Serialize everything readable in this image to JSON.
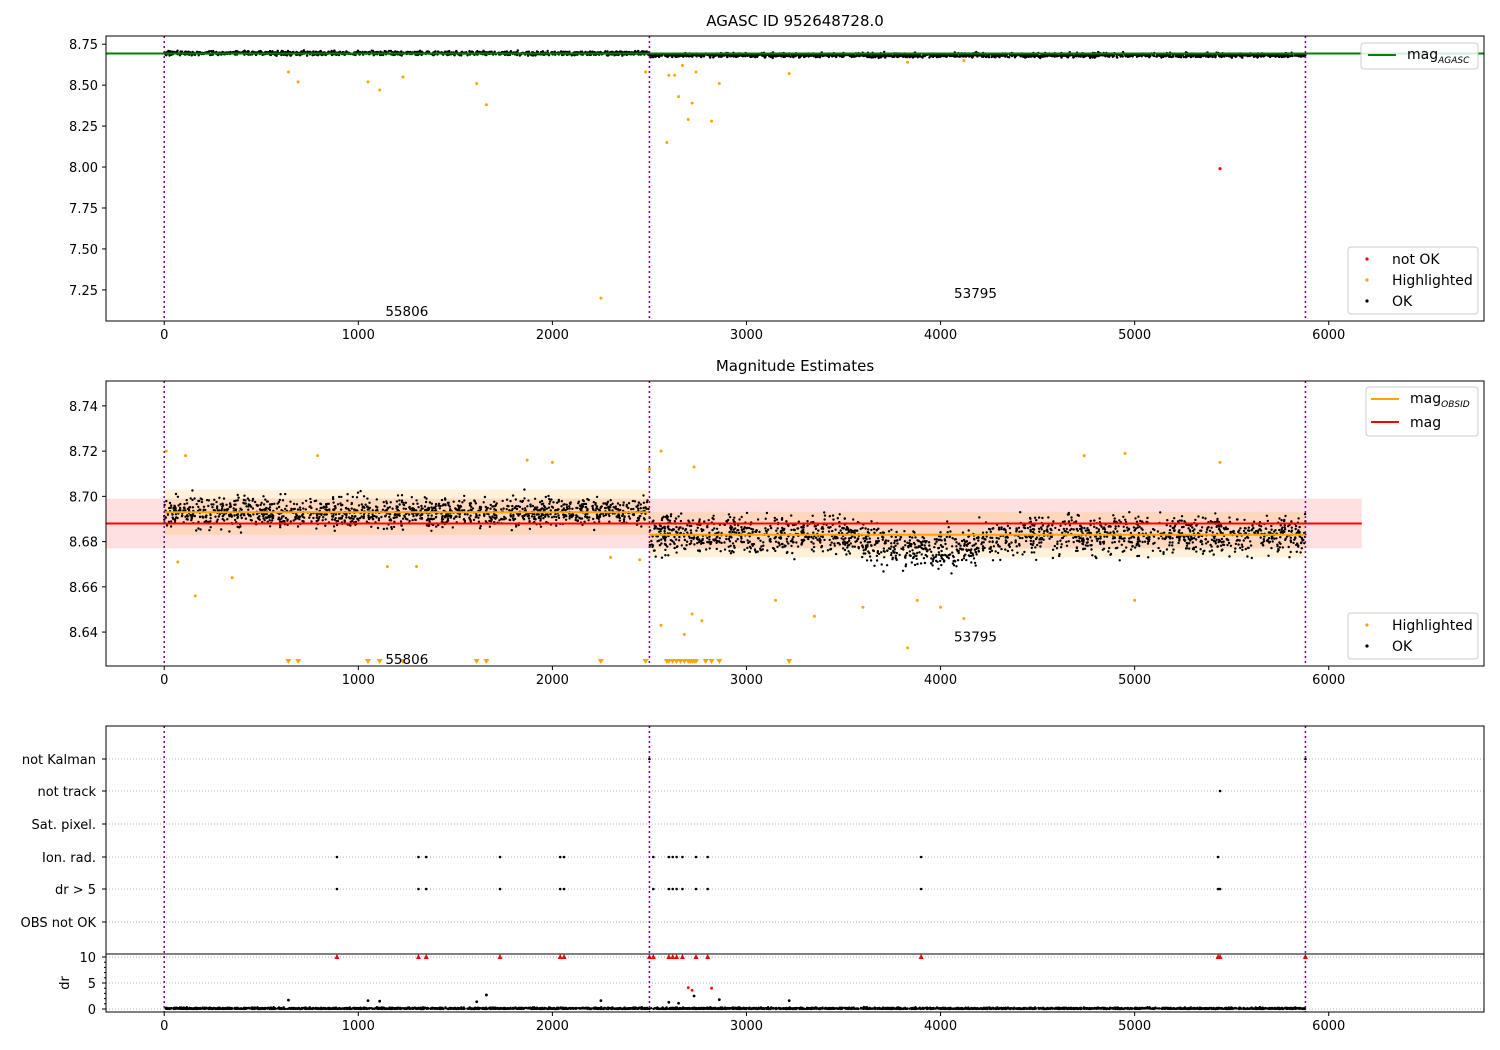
{
  "chart_data": [
    {
      "type": "scatter",
      "title": "AGASC ID 952648728.0",
      "xlim": [
        -300,
        6800
      ],
      "ylim": [
        7.06,
        8.8
      ],
      "xticks": [
        0,
        1000,
        2000,
        3000,
        4000,
        5000,
        6000
      ],
      "yticks": [
        7.25,
        7.5,
        7.75,
        8.0,
        8.25,
        8.5,
        8.75
      ],
      "ytick_labels": [
        "7.25",
        "7.50",
        "7.75",
        "8.00",
        "8.25",
        "8.50",
        "8.75"
      ],
      "grid": false,
      "mag_agasc": 8.693,
      "obsid_boundaries": [
        0,
        2500,
        5880
      ],
      "obsid_labels": [
        {
          "text": "55806",
          "x": 1250,
          "y": 7.12
        },
        {
          "text": "53795",
          "x": 4180,
          "y": 7.23
        }
      ],
      "lines_legend": {
        "position": "upper-right",
        "entries": [
          {
            "label": "mag",
            "sub": "AGASC",
            "color": "#008000"
          }
        ]
      },
      "points_legend": {
        "position": "lower-right",
        "entries": [
          {
            "label": "not OK",
            "color": "#ff0000"
          },
          {
            "label": "Highlighted",
            "color": "#ffa500"
          },
          {
            "label": "OK",
            "color": "#000000"
          }
        ]
      },
      "band_segments": [
        {
          "x0": 0,
          "x1": 2500,
          "center": 8.695,
          "spread": 0.012
        },
        {
          "x0": 2500,
          "x1": 5880,
          "center": 8.683,
          "spread": 0.013
        }
      ],
      "not_ok_points": [
        {
          "x": 5440,
          "y": 7.99
        }
      ],
      "highlighted_points": [
        {
          "x": 640,
          "y": 8.58
        },
        {
          "x": 690,
          "y": 8.52
        },
        {
          "x": 1050,
          "y": 8.52
        },
        {
          "x": 1110,
          "y": 8.47
        },
        {
          "x": 1230,
          "y": 8.55
        },
        {
          "x": 1610,
          "y": 8.51
        },
        {
          "x": 1660,
          "y": 8.38
        },
        {
          "x": 2250,
          "y": 7.2
        },
        {
          "x": 2480,
          "y": 8.58
        },
        {
          "x": 2590,
          "y": 8.15
        },
        {
          "x": 2600,
          "y": 8.56
        },
        {
          "x": 2630,
          "y": 8.56
        },
        {
          "x": 2650,
          "y": 8.43
        },
        {
          "x": 2670,
          "y": 8.62
        },
        {
          "x": 2700,
          "y": 8.29
        },
        {
          "x": 2720,
          "y": 8.39
        },
        {
          "x": 2740,
          "y": 8.58
        },
        {
          "x": 2820,
          "y": 8.28
        },
        {
          "x": 2860,
          "y": 8.51
        },
        {
          "x": 3220,
          "y": 8.57
        },
        {
          "x": 3830,
          "y": 8.64
        },
        {
          "x": 4120,
          "y": 8.65
        }
      ]
    },
    {
      "type": "scatter",
      "title": "Magnitude Estimates",
      "xlim": [
        -300,
        6800
      ],
      "ylim": [
        8.625,
        8.751
      ],
      "xticks": [
        0,
        1000,
        2000,
        3000,
        4000,
        5000,
        6000
      ],
      "yticks": [
        8.64,
        8.66,
        8.68,
        8.7,
        8.72,
        8.74
      ],
      "ytick_labels": [
        "8.64",
        "8.66",
        "8.68",
        "8.70",
        "8.72",
        "8.74"
      ],
      "grid": false,
      "mag": 8.688,
      "mag_band": [
        8.677,
        8.699
      ],
      "mag_band_xrange": [
        -300,
        6170
      ],
      "mag_obsid": [
        {
          "x0": 0,
          "x1": 2500,
          "value": 8.693,
          "band": [
            8.683,
            8.703
          ]
        },
        {
          "x0": 2500,
          "x1": 5880,
          "value": 8.683,
          "band": [
            8.673,
            8.693
          ]
        }
      ],
      "obsid_boundaries": [
        0,
        2500,
        5880
      ],
      "obsid_labels": [
        {
          "text": "55806",
          "x": 1250,
          "y": 8.628
        },
        {
          "text": "53795",
          "x": 4180,
          "y": 8.638
        }
      ],
      "lines_legend": {
        "position": "upper-right",
        "entries": [
          {
            "label": "mag",
            "sub": "OBSID",
            "color": "#ffa500"
          },
          {
            "label": "mag",
            "sub": "",
            "color": "#ff0000"
          }
        ]
      },
      "points_legend": {
        "position": "lower-right",
        "entries": [
          {
            "label": "Highlighted",
            "color": "#ffa500"
          },
          {
            "label": "OK",
            "color": "#000000"
          }
        ]
      },
      "highlighted_points": [
        {
          "x": 10,
          "y": 8.72
        },
        {
          "x": 70,
          "y": 8.671
        },
        {
          "x": 110,
          "y": 8.718
        },
        {
          "x": 160,
          "y": 8.656
        },
        {
          "x": 350,
          "y": 8.664
        },
        {
          "x": 790,
          "y": 8.718
        },
        {
          "x": 1870,
          "y": 8.716
        },
        {
          "x": 2000,
          "y": 8.715
        },
        {
          "x": 2500,
          "y": 8.712
        },
        {
          "x": 2560,
          "y": 8.72
        },
        {
          "x": 2730,
          "y": 8.713
        },
        {
          "x": 2560,
          "y": 8.643
        },
        {
          "x": 2680,
          "y": 8.639
        },
        {
          "x": 2720,
          "y": 8.648
        },
        {
          "x": 2770,
          "y": 8.645
        },
        {
          "x": 3150,
          "y": 8.654
        },
        {
          "x": 3350,
          "y": 8.647
        },
        {
          "x": 3600,
          "y": 8.651
        },
        {
          "x": 3830,
          "y": 8.633
        },
        {
          "x": 3880,
          "y": 8.654
        },
        {
          "x": 4000,
          "y": 8.651
        },
        {
          "x": 4120,
          "y": 8.646
        },
        {
          "x": 4740,
          "y": 8.718
        },
        {
          "x": 4950,
          "y": 8.719
        },
        {
          "x": 5000,
          "y": 8.654
        },
        {
          "x": 5440,
          "y": 8.715
        },
        {
          "x": 1150,
          "y": 8.669
        },
        {
          "x": 1300,
          "y": 8.669
        },
        {
          "x": 2300,
          "y": 8.673
        },
        {
          "x": 2450,
          "y": 8.672
        }
      ],
      "clipped_low_markers_x": [
        640,
        690,
        1050,
        1110,
        1230,
        1610,
        1660,
        2250,
        2480,
        2590,
        2600,
        2620,
        2640,
        2660,
        2680,
        2700,
        2710,
        2720,
        2730,
        2740,
        2790,
        2820,
        2860,
        3220
      ]
    },
    {
      "type": "scatter",
      "title": "",
      "xlim": [
        -300,
        6800
      ],
      "xticks": [
        0,
        1000,
        2000,
        3000,
        4000,
        5000,
        6000
      ],
      "grid": true,
      "obsid_boundaries": [
        0,
        2500,
        5880
      ],
      "flag_rows": [
        "not Kalman",
        "not track",
        "Sat. pixel.",
        "Ion. rad.",
        "dr > 5",
        "OBS not OK"
      ],
      "flag_points": [
        {
          "row": "not Kalman",
          "x": [
            2500,
            5880
          ]
        },
        {
          "row": "not track",
          "x": [
            5440
          ]
        },
        {
          "row": "Sat. pixel.",
          "x": []
        },
        {
          "row": "Ion. rad.",
          "x": [
            890,
            1310,
            1350,
            1730,
            2040,
            2060,
            2520,
            2600,
            2620,
            2640,
            2670,
            2740,
            2800,
            3900,
            5430
          ]
        },
        {
          "row": "dr > 5",
          "x": [
            890,
            1310,
            1350,
            1730,
            2040,
            2060,
            2520,
            2600,
            2620,
            2640,
            2670,
            2740,
            2800,
            3900,
            5430,
            5440
          ]
        },
        {
          "row": "OBS not OK",
          "x": []
        }
      ],
      "dr_ylabel": "dr",
      "dr_ylim": [
        0,
        10
      ],
      "dr_yticks": [
        0,
        5,
        10
      ],
      "dr_clipped_markers_x": [
        890,
        1310,
        1350,
        1730,
        2040,
        2060,
        2500,
        2520,
        2600,
        2620,
        2640,
        2670,
        2740,
        2800,
        3900,
        5430,
        5440,
        5880
      ],
      "dr_outliers": [
        {
          "x": 640,
          "y": 1.7
        },
        {
          "x": 1050,
          "y": 1.6
        },
        {
          "x": 1110,
          "y": 1.5
        },
        {
          "x": 1610,
          "y": 1.4
        },
        {
          "x": 1660,
          "y": 2.7
        },
        {
          "x": 2250,
          "y": 1.6
        },
        {
          "x": 2700,
          "y": 4.1
        },
        {
          "x": 2720,
          "y": 3.6
        },
        {
          "x": 2730,
          "y": 2.5
        },
        {
          "x": 2820,
          "y": 4.0
        },
        {
          "x": 2860,
          "y": 1.8
        },
        {
          "x": 3220,
          "y": 1.6
        },
        {
          "x": 2600,
          "y": 1.3
        },
        {
          "x": 2650,
          "y": 1.1
        }
      ]
    }
  ]
}
